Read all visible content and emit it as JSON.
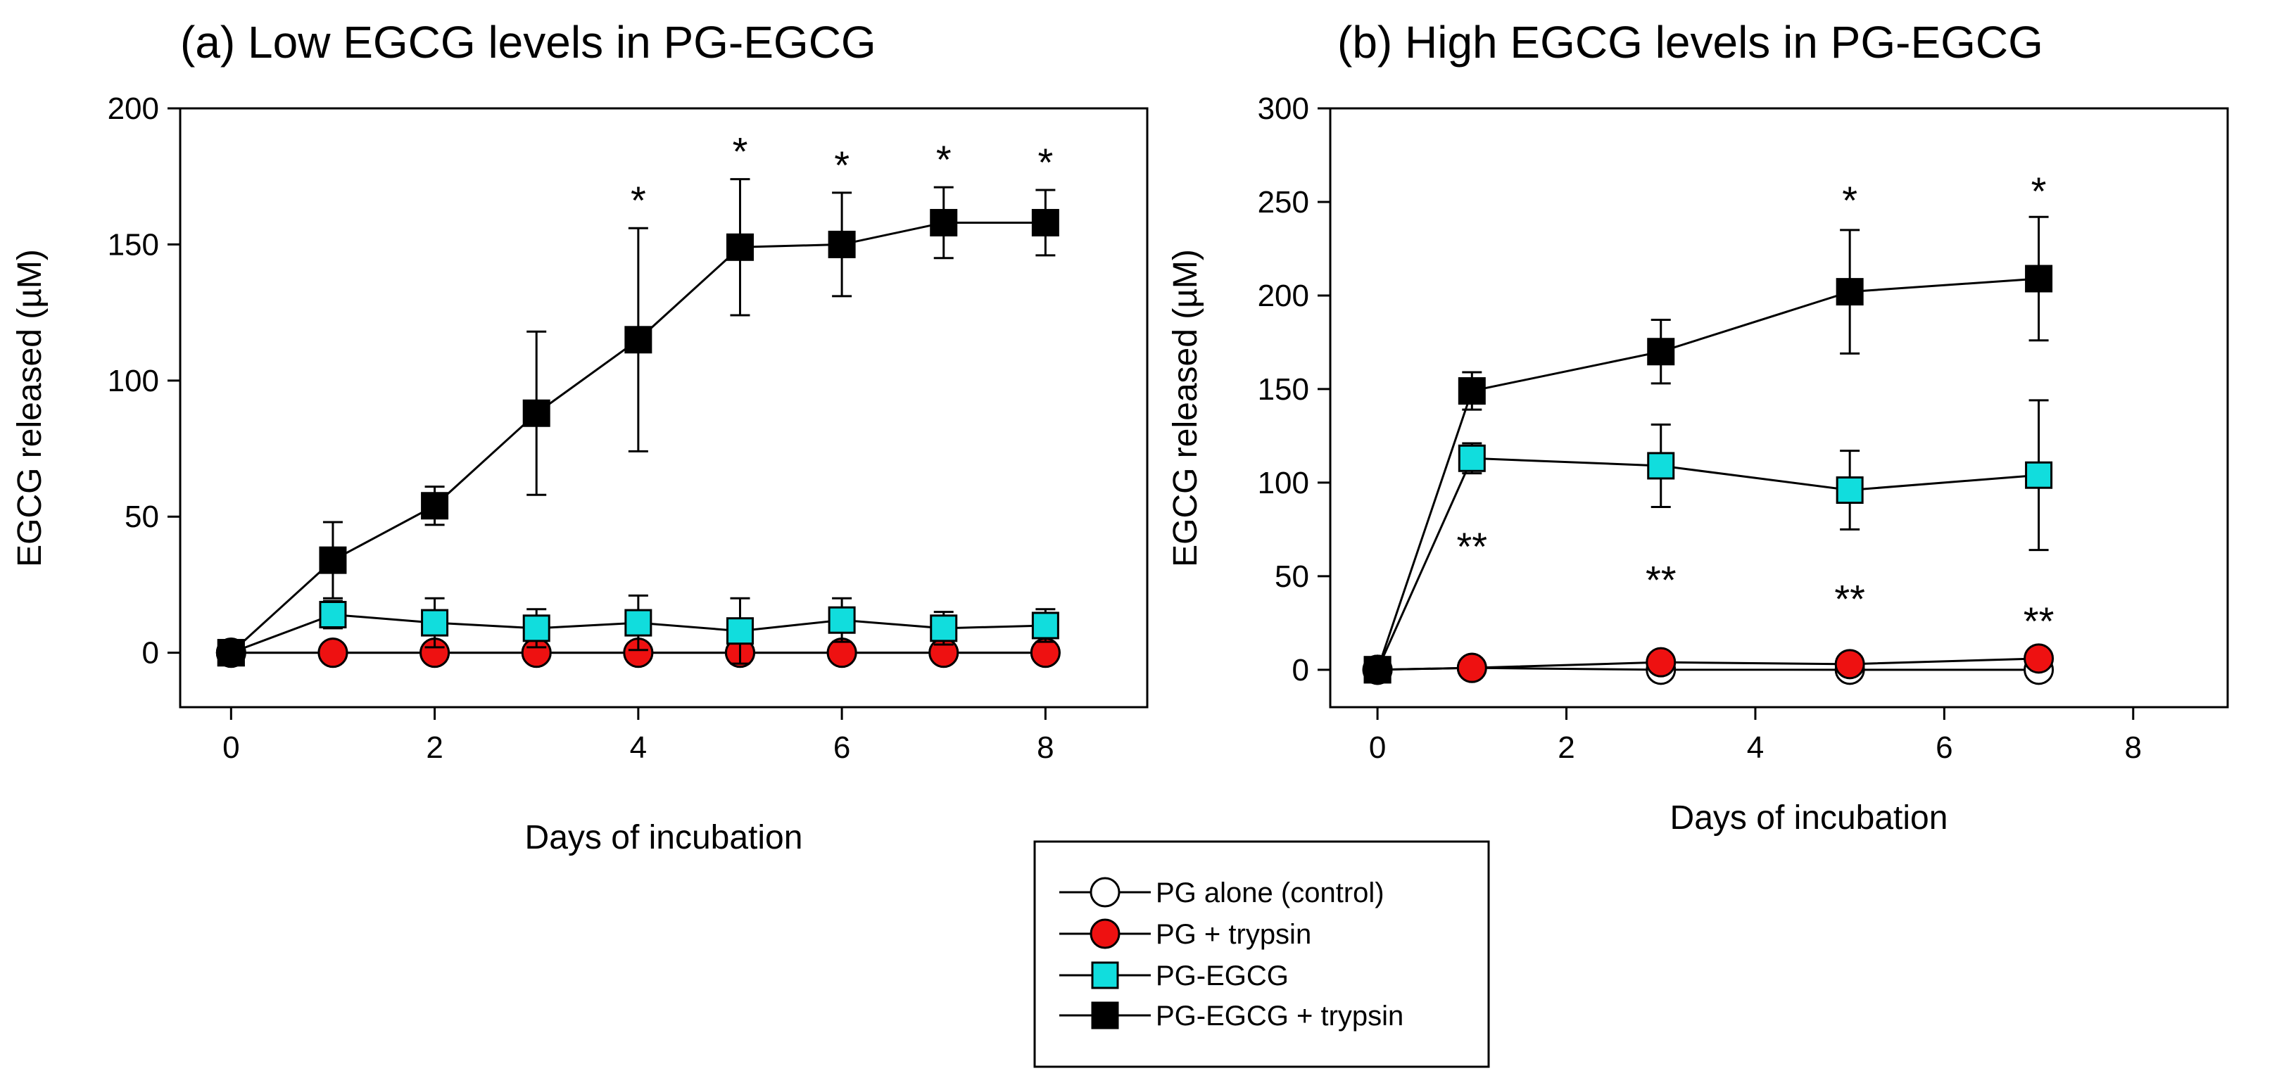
{
  "legend": {
    "entries": [
      {
        "name": "PG alone (control)",
        "marker": "circle",
        "fill": "#ffffff"
      },
      {
        "name": "PG + trypsin",
        "marker": "circle",
        "fill": "#ee1111"
      },
      {
        "name": "PG-EGCG",
        "marker": "square",
        "fill": "#11dddd"
      },
      {
        "name": "PG-EGCG + trypsin",
        "marker": "square",
        "fill": "#000000"
      }
    ]
  },
  "chart_data": [
    {
      "type": "line",
      "title": "(a) Low EGCG levels in PG-EGCG",
      "xlabel": "Days of incubation",
      "ylabel": "EGCG released (µM)",
      "xlim": [
        -0.5,
        9.0
      ],
      "ylim": [
        -20,
        200
      ],
      "xticks": [
        0,
        2,
        4,
        6,
        8
      ],
      "yticks": [
        0,
        50,
        100,
        150,
        200
      ],
      "series": [
        {
          "name": "PG alone (control)",
          "x": [
            0,
            1,
            2,
            3,
            4,
            5,
            6,
            7,
            8
          ],
          "values": [
            0,
            0,
            0,
            0,
            0,
            0,
            0,
            0,
            0
          ],
          "errors": [
            0,
            0,
            0,
            0,
            0,
            0,
            0,
            0,
            0
          ]
        },
        {
          "name": "PG + trypsin",
          "x": [
            0,
            1,
            2,
            3,
            4,
            5,
            6,
            7,
            8
          ],
          "values": [
            0,
            0,
            0,
            0,
            0,
            0,
            0,
            0,
            0
          ],
          "errors": [
            0,
            0,
            0,
            0,
            0,
            0,
            0,
            0,
            0
          ]
        },
        {
          "name": "PG-EGCG",
          "x": [
            0,
            1,
            2,
            3,
            4,
            5,
            6,
            7,
            8
          ],
          "values": [
            0,
            14,
            11,
            9,
            11,
            8,
            12,
            9,
            10
          ],
          "errors": [
            0,
            5,
            9,
            7,
            10,
            12,
            8,
            6,
            6
          ]
        },
        {
          "name": "PG-EGCG + trypsin",
          "x": [
            0,
            1,
            2,
            3,
            4,
            5,
            6,
            7,
            8
          ],
          "values": [
            0,
            34,
            54,
            88,
            115,
            149,
            150,
            158,
            158
          ],
          "errors": [
            0,
            14,
            7,
            30,
            41,
            25,
            19,
            13,
            12
          ]
        }
      ],
      "annotations": [
        {
          "x": 4,
          "y": 156,
          "text": "*"
        },
        {
          "x": 5,
          "y": 174,
          "text": "*"
        },
        {
          "x": 6,
          "y": 169,
          "text": "*"
        },
        {
          "x": 7,
          "y": 171,
          "text": "*"
        },
        {
          "x": 8,
          "y": 170,
          "text": "*"
        }
      ]
    },
    {
      "type": "line",
      "title": "(b) High EGCG levels in PG-EGCG",
      "xlabel": "Days of incubation",
      "ylabel": "EGCG released (µM)",
      "xlim": [
        -0.5,
        9.0
      ],
      "ylim": [
        -20,
        300
      ],
      "xticks": [
        0,
        2,
        4,
        6,
        8
      ],
      "yticks": [
        0,
        50,
        100,
        150,
        200,
        250,
        300
      ],
      "series": [
        {
          "name": "PG alone (control)",
          "x": [
            0,
            1,
            3,
            5,
            7
          ],
          "values": [
            0,
            1,
            0,
            0,
            0
          ],
          "errors": [
            0,
            0,
            0,
            0,
            0
          ]
        },
        {
          "name": "PG + trypsin",
          "x": [
            0,
            1,
            3,
            5,
            7
          ],
          "values": [
            0,
            1,
            4,
            3,
            6
          ],
          "errors": [
            0,
            0,
            0,
            0,
            0
          ]
        },
        {
          "name": "PG-EGCG",
          "x": [
            0,
            1,
            3,
            5,
            7
          ],
          "values": [
            0,
            113,
            109,
            96,
            104
          ],
          "errors": [
            0,
            8,
            22,
            21,
            40
          ]
        },
        {
          "name": "PG-EGCG + trypsin",
          "x": [
            0,
            1,
            3,
            5,
            7
          ],
          "values": [
            0,
            149,
            170,
            202,
            209
          ],
          "errors": [
            0,
            10,
            17,
            33,
            33
          ]
        }
      ],
      "annotations": [
        {
          "x": 5,
          "y": 236,
          "text": "*"
        },
        {
          "x": 7,
          "y": 241,
          "text": "*"
        },
        {
          "x": 1,
          "y": 88,
          "text": "**"
        },
        {
          "x": 3,
          "y": 70,
          "text": "**"
        },
        {
          "x": 5,
          "y": 60,
          "text": "**"
        },
        {
          "x": 7,
          "y": 48,
          "text": "**"
        }
      ]
    }
  ]
}
